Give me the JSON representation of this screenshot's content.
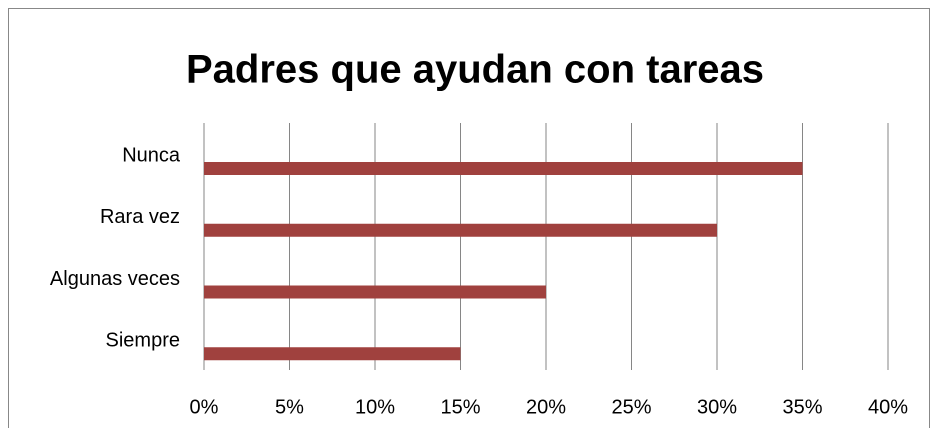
{
  "chart_data": {
    "type": "bar",
    "orientation": "horizontal",
    "title": "Padres que ayudan con tareas",
    "categories": [
      "Nunca",
      "Rara vez",
      "Algunas veces",
      "Siempre"
    ],
    "values": [
      35,
      30,
      20,
      15
    ],
    "color": "#a0413e",
    "xlim": [
      0,
      40
    ],
    "xticks": [
      {
        "value": 0,
        "label": "0%"
      },
      {
        "value": 5,
        "label": "5%"
      },
      {
        "value": 10,
        "label": "10%"
      },
      {
        "value": 15,
        "label": "15%"
      },
      {
        "value": 20,
        "label": "20%"
      },
      {
        "value": 25,
        "label": "25%"
      },
      {
        "value": 30,
        "label": "30%"
      },
      {
        "value": 35,
        "label": "35%"
      },
      {
        "value": 40,
        "label": "40%"
      }
    ],
    "grid": true
  }
}
